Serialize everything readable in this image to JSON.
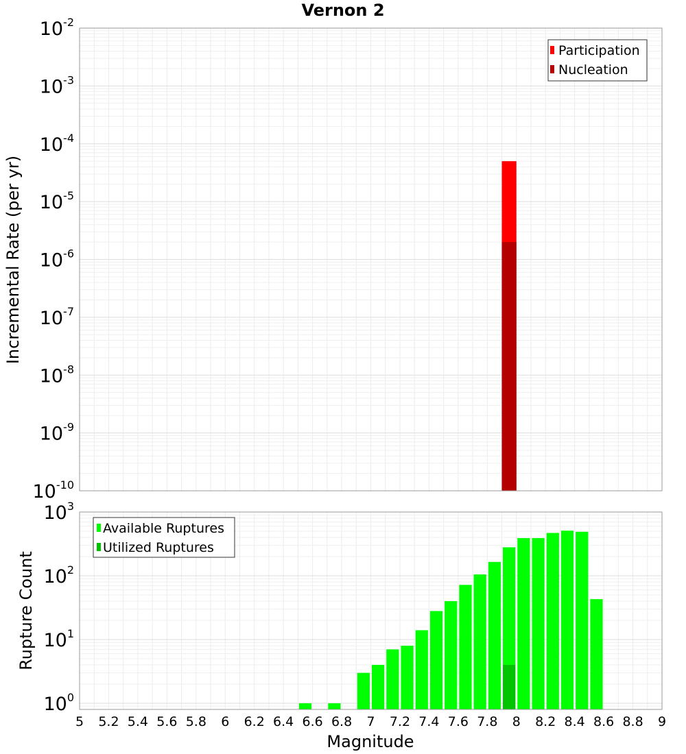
{
  "chart_data": {
    "title": "Vernon 2",
    "xlabel": "Magnitude",
    "x_ticks": [
      "5",
      "5.2",
      "5.4",
      "5.6",
      "5.8",
      "6",
      "6.2",
      "6.4",
      "6.6",
      "6.8",
      "7",
      "7.2",
      "7.4",
      "7.6",
      "7.8",
      "8",
      "8.2",
      "8.4",
      "8.6",
      "8.8",
      "9"
    ],
    "xlim": [
      5,
      9
    ],
    "panels": [
      {
        "type": "bar",
        "ylabel": "Incremental Rate (per yr)",
        "yscale": "log",
        "ylim": [
          1e-10,
          0.01
        ],
        "y_tick_exponents": [
          "-10",
          "-9",
          "-8",
          "-7",
          "-6",
          "-5",
          "-4",
          "-3",
          "-2"
        ],
        "legend": {
          "placement": "top-right",
          "entries": [
            "Participation",
            "Nucleation"
          ]
        },
        "series": [
          {
            "name": "Participation",
            "color": "#ff0000",
            "x": [
              7.95
            ],
            "values": [
              5e-05
            ]
          },
          {
            "name": "Nucleation",
            "color": "#b40000",
            "x": [
              7.95
            ],
            "values": [
              2e-06
            ]
          }
        ]
      },
      {
        "type": "bar",
        "ylabel": "Rupture Count",
        "yscale": "log",
        "ylim": [
          0.8,
          1000
        ],
        "y_tick_exponents": [
          "0",
          "1",
          "2",
          "3"
        ],
        "legend": {
          "placement": "top-left",
          "entries": [
            "Available Ruptures",
            "Utilized Ruptures"
          ]
        },
        "series": [
          {
            "name": "Available Ruptures",
            "color": "#00ff00",
            "x": [
              6.55,
              6.75,
              6.95,
              7.05,
              7.15,
              7.25,
              7.35,
              7.45,
              7.55,
              7.65,
              7.75,
              7.85,
              7.95,
              8.05,
              8.15,
              8.25,
              8.35,
              8.45,
              8.55
            ],
            "values": [
              1,
              1,
              3,
              4,
              7,
              8,
              14,
              28,
              40,
              72,
              105,
              165,
              280,
              390,
              390,
              470,
              510,
              490,
              43
            ]
          },
          {
            "name": "Utilized Ruptures",
            "color": "#00c400",
            "x": [
              7.95
            ],
            "values": [
              4
            ]
          }
        ]
      }
    ]
  }
}
